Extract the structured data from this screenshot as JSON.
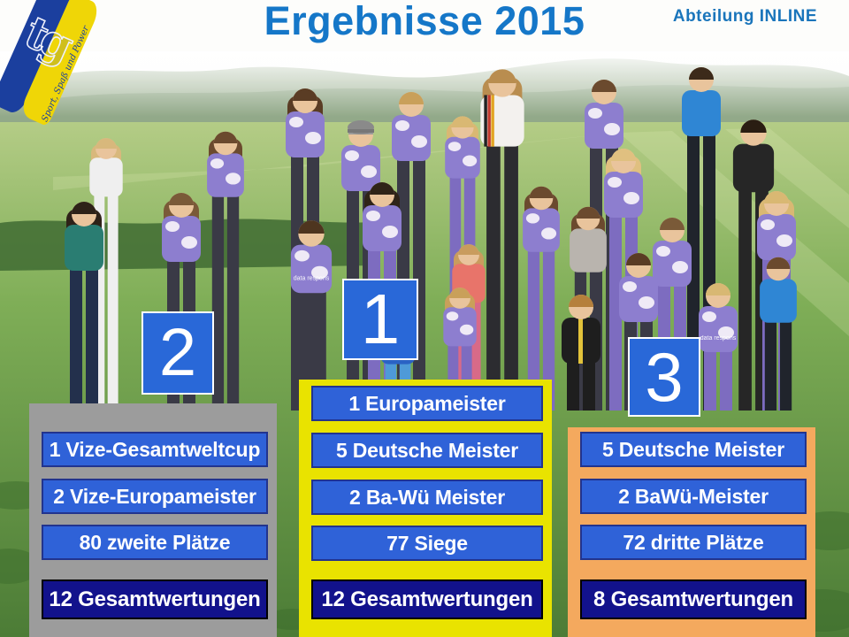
{
  "slide": {
    "title": "Ergebnisse 2015",
    "department": "Abteilung INLINE"
  },
  "logo": {
    "monogram": "tg",
    "motto_line1": "Sport, Spaß",
    "motto_line2": "und Power"
  },
  "photo": {
    "jersey_text": "data respons"
  },
  "podium": {
    "first": {
      "rank": "1",
      "items": [
        "1 Europameister",
        "5 Deutsche Meister",
        "2 Ba-Wü Meister",
        "77 Siege"
      ],
      "total": "12 Gesamtwertungen"
    },
    "second": {
      "rank": "2",
      "items": [
        "1 Vize-Gesamtweltcup",
        "2 Vize-Europameister",
        "80 zweite Plätze"
      ],
      "total": "12 Gesamtwertungen"
    },
    "third": {
      "rank": "3",
      "items": [
        "5 Deutsche Meister",
        "2 BaWü-Meister",
        "72 dritte Plätze"
      ],
      "total": "8 Gesamtwertungen"
    }
  },
  "colors": {
    "title_blue": "#1577c8",
    "row_blue": "#2f62d8",
    "total_navy": "#12128c",
    "frame_gray": "#9c9c9c",
    "frame_yellow": "#e9e300",
    "frame_orange": "#f4a95e",
    "rank_blue": "#2968d8",
    "logo_blue": "#1b3f9e",
    "logo_yellow": "#efd607"
  }
}
